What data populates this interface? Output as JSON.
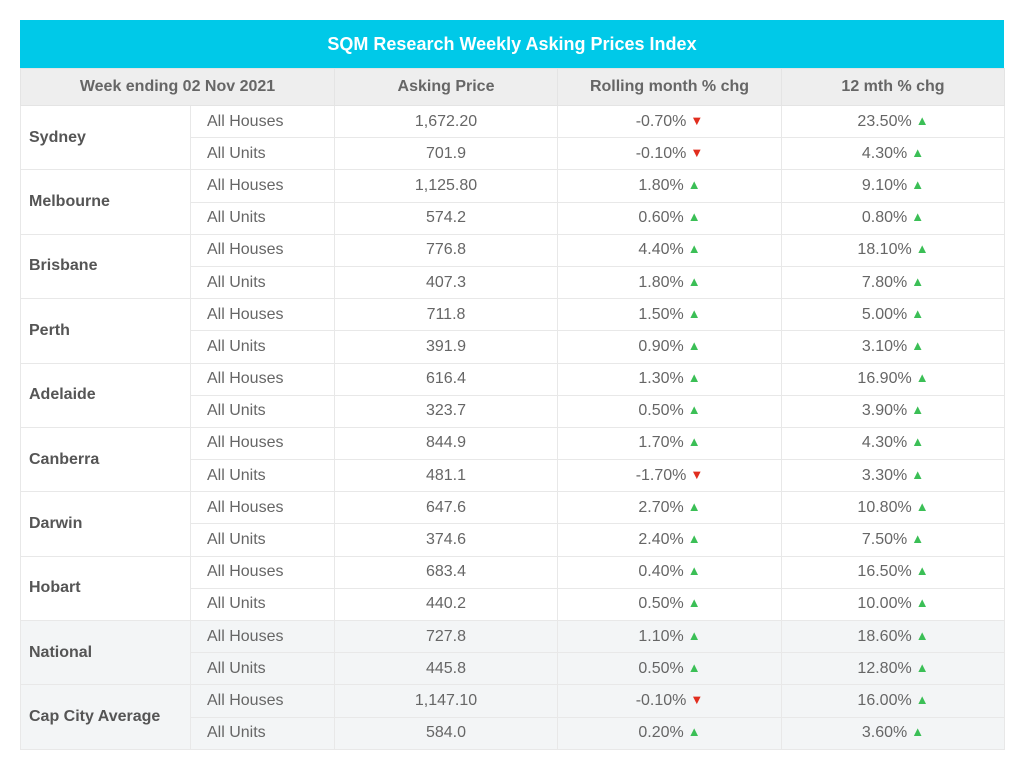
{
  "chart_data": {
    "type": "table",
    "title": "SQM Research Weekly Asking Prices Index",
    "columns": [
      "Week ending 02 Nov 2021",
      "Asking Price",
      "Rolling month % chg",
      "12 mth % chg"
    ],
    "colors": {
      "header_bar": "#00c9e8",
      "up": "#3bbf56",
      "down": "#e12d1e"
    },
    "rows": [
      {
        "city": "Sydney",
        "type": "All Houses",
        "price": "1,672.20",
        "month": "-0.70%",
        "month_dir": "down",
        "year": "23.50%",
        "year_dir": "up"
      },
      {
        "city": "Sydney",
        "type": "All Units",
        "price": "701.9",
        "month": "-0.10%",
        "month_dir": "down",
        "year": "4.30%",
        "year_dir": "up"
      },
      {
        "city": "Melbourne",
        "type": "All Houses",
        "price": "1,125.80",
        "month": "1.80%",
        "month_dir": "up",
        "year": "9.10%",
        "year_dir": "up"
      },
      {
        "city": "Melbourne",
        "type": "All Units",
        "price": "574.2",
        "month": "0.60%",
        "month_dir": "up",
        "year": "0.80%",
        "year_dir": "up"
      },
      {
        "city": "Brisbane",
        "type": "All Houses",
        "price": "776.8",
        "month": "4.40%",
        "month_dir": "up",
        "year": "18.10%",
        "year_dir": "up"
      },
      {
        "city": "Brisbane",
        "type": "All Units",
        "price": "407.3",
        "month": "1.80%",
        "month_dir": "up",
        "year": "7.80%",
        "year_dir": "up"
      },
      {
        "city": "Perth",
        "type": "All Houses",
        "price": "711.8",
        "month": "1.50%",
        "month_dir": "up",
        "year": "5.00%",
        "year_dir": "up"
      },
      {
        "city": "Perth",
        "type": "All Units",
        "price": "391.9",
        "month": "0.90%",
        "month_dir": "up",
        "year": "3.10%",
        "year_dir": "up"
      },
      {
        "city": "Adelaide",
        "type": "All Houses",
        "price": "616.4",
        "month": "1.30%",
        "month_dir": "up",
        "year": "16.90%",
        "year_dir": "up"
      },
      {
        "city": "Adelaide",
        "type": "All Units",
        "price": "323.7",
        "month": "0.50%",
        "month_dir": "up",
        "year": "3.90%",
        "year_dir": "up"
      },
      {
        "city": "Canberra",
        "type": "All Houses",
        "price": "844.9",
        "month": "1.70%",
        "month_dir": "up",
        "year": "4.30%",
        "year_dir": "up"
      },
      {
        "city": "Canberra",
        "type": "All Units",
        "price": "481.1",
        "month": "-1.70%",
        "month_dir": "down",
        "year": "3.30%",
        "year_dir": "up"
      },
      {
        "city": "Darwin",
        "type": "All Houses",
        "price": "647.6",
        "month": "2.70%",
        "month_dir": "up",
        "year": "10.80%",
        "year_dir": "up"
      },
      {
        "city": "Darwin",
        "type": "All Units",
        "price": "374.6",
        "month": "2.40%",
        "month_dir": "up",
        "year": "7.50%",
        "year_dir": "up"
      },
      {
        "city": "Hobart",
        "type": "All Houses",
        "price": "683.4",
        "month": "0.40%",
        "month_dir": "up",
        "year": "16.50%",
        "year_dir": "up"
      },
      {
        "city": "Hobart",
        "type": "All Units",
        "price": "440.2",
        "month": "0.50%",
        "month_dir": "up",
        "year": "10.00%",
        "year_dir": "up"
      },
      {
        "city": "National",
        "type": "All Houses",
        "price": "727.8",
        "month": "1.10%",
        "month_dir": "up",
        "year": "18.60%",
        "year_dir": "up"
      },
      {
        "city": "National",
        "type": "All Units",
        "price": "445.8",
        "month": "0.50%",
        "month_dir": "up",
        "year": "12.80%",
        "year_dir": "up"
      },
      {
        "city": "Cap City Average",
        "type": "All Houses",
        "price": "1,147.10",
        "month": "-0.10%",
        "month_dir": "down",
        "year": "16.00%",
        "year_dir": "up"
      },
      {
        "city": "Cap City Average",
        "type": "All Units",
        "price": "584.0",
        "month": "0.20%",
        "month_dir": "up",
        "year": "3.60%",
        "year_dir": "up"
      }
    ],
    "shaded_groups": [
      "National",
      "Cap City Average"
    ]
  }
}
